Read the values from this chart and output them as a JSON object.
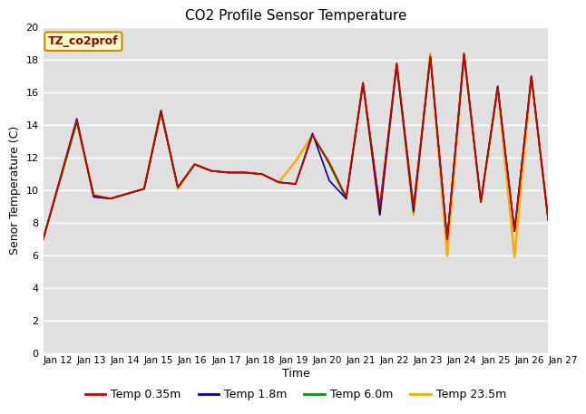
{
  "title": "CO2 Profile Sensor Temperature",
  "xlabel": "Time",
  "ylabel": "Senor Temperature (C)",
  "annotation": "TZ_co2prof",
  "xlim": [
    0,
    15
  ],
  "ylim": [
    0,
    20
  ],
  "yticks": [
    0,
    2,
    4,
    6,
    8,
    10,
    12,
    14,
    16,
    18,
    20
  ],
  "xtick_labels": [
    "Jan 12",
    "Jan 13",
    "Jan 14",
    "Jan 15",
    "Jan 16",
    "Jan 17",
    "Jan 18",
    "Jan 19",
    "Jan 20",
    "Jan 21",
    "Jan 22",
    "Jan 23",
    "Jan 24",
    "Jan 25",
    "Jan 26",
    "Jan 27"
  ],
  "bg_color": "#e0e0e0",
  "grid_color": "#ffffff",
  "series_order": [
    "Temp 23.5m",
    "Temp 6.0m",
    "Temp 1.8m",
    "Temp 0.35m"
  ],
  "series": {
    "Temp 0.35m": {
      "color": "#cc0000",
      "lw": 1.2,
      "x": [
        0,
        1,
        1.5,
        2,
        3,
        3.5,
        4,
        4.5,
        5,
        5.5,
        6,
        6.5,
        7,
        7.5,
        8,
        8.5,
        9,
        9.5,
        10,
        10.5,
        11,
        11.5,
        12,
        12.5,
        13,
        13.5,
        14,
        14.5,
        15
      ],
      "y": [
        7.0,
        14.3,
        9.7,
        9.5,
        10.1,
        14.8,
        10.2,
        11.6,
        11.2,
        11.1,
        11.1,
        11.0,
        10.5,
        10.4,
        13.4,
        11.7,
        9.6,
        16.6,
        9.0,
        17.8,
        9.0,
        18.2,
        7.0,
        18.4,
        9.3,
        16.3,
        7.5,
        17.0,
        8.2
      ]
    },
    "Temp 1.8m": {
      "color": "#000099",
      "lw": 1.2,
      "x": [
        0,
        1,
        1.5,
        2,
        3,
        3.5,
        4,
        4.5,
        5,
        5.5,
        6,
        6.5,
        7,
        7.5,
        8,
        8.5,
        9,
        9.5,
        10,
        10.5,
        11,
        11.5,
        12,
        12.5,
        13,
        13.5,
        14,
        14.5,
        15
      ],
      "y": [
        7.0,
        14.4,
        9.6,
        9.5,
        10.1,
        14.9,
        10.2,
        11.6,
        11.2,
        11.1,
        11.1,
        11.0,
        10.5,
        10.4,
        13.5,
        10.6,
        9.5,
        16.6,
        8.5,
        17.7,
        8.7,
        18.2,
        7.0,
        18.3,
        9.3,
        16.4,
        7.5,
        17.0,
        8.2
      ]
    },
    "Temp 6.0m": {
      "color": "#009900",
      "lw": 1.2,
      "x": [
        0,
        1,
        1.5,
        2,
        3,
        3.5,
        4,
        4.5,
        5,
        5.5,
        6,
        6.5,
        7,
        7.5,
        8,
        8.5,
        9,
        9.5,
        10,
        10.5,
        11,
        11.5,
        12,
        12.5,
        13,
        13.5,
        14,
        14.5,
        15
      ],
      "y": [
        7.0,
        14.2,
        9.7,
        9.5,
        10.1,
        14.8,
        10.2,
        11.6,
        11.2,
        11.1,
        11.1,
        11.0,
        10.5,
        10.4,
        13.4,
        11.6,
        9.5,
        16.5,
        9.0,
        17.7,
        9.0,
        18.2,
        7.0,
        18.4,
        9.3,
        16.3,
        7.5,
        17.0,
        8.2
      ]
    },
    "Temp 23.5m": {
      "color": "#ffaa00",
      "lw": 1.8,
      "x": [
        0,
        1,
        1.5,
        2,
        3,
        3.5,
        4,
        4.5,
        5,
        5.5,
        6,
        6.5,
        7,
        7.5,
        8,
        8.5,
        9,
        9.5,
        10,
        10.5,
        11,
        11.5,
        12,
        12.5,
        13,
        13.5,
        14,
        14.5,
        15
      ],
      "y": [
        7.0,
        14.2,
        9.7,
        9.5,
        10.1,
        14.9,
        10.1,
        11.6,
        11.2,
        11.1,
        11.1,
        11.0,
        10.5,
        11.8,
        13.4,
        11.7,
        9.5,
        16.6,
        8.5,
        17.8,
        8.5,
        18.4,
        6.0,
        18.4,
        9.3,
        16.3,
        5.9,
        17.0,
        8.2
      ]
    }
  },
  "legend": [
    {
      "label": "Temp 0.35m",
      "color": "#cc0000"
    },
    {
      "label": "Temp 1.8m",
      "color": "#000099"
    },
    {
      "label": "Temp 6.0m",
      "color": "#009900"
    },
    {
      "label": "Temp 23.5m",
      "color": "#ffaa00"
    }
  ]
}
